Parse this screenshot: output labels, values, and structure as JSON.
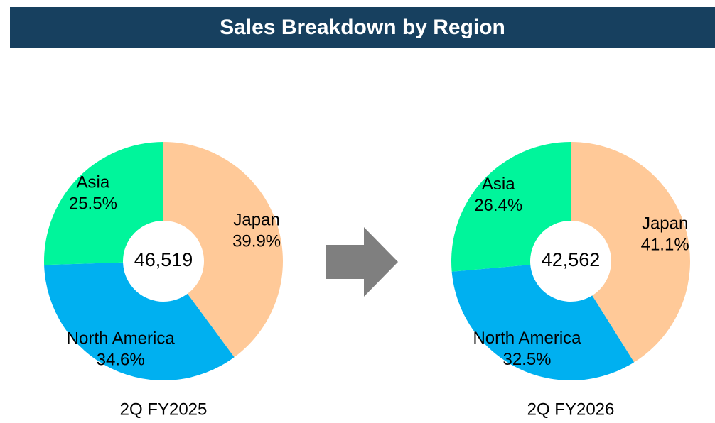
{
  "title": "Sales Breakdown by Region",
  "chart_data": [
    {
      "type": "donut",
      "caption": "2Q FY2025",
      "center_label": "46,519",
      "categories": [
        "Japan",
        "North America",
        "Asia"
      ],
      "values": [
        39.9,
        34.6,
        25.5
      ],
      "value_labels": [
        "39.9%",
        "34.6%",
        "25.5%"
      ],
      "colors": [
        "#ffc998",
        "#00b0f0",
        "#00f59b"
      ]
    },
    {
      "type": "donut",
      "caption": "2Q FY2026",
      "center_label": "42,562",
      "categories": [
        "Japan",
        "North America",
        "Asia"
      ],
      "values": [
        41.1,
        32.5,
        26.4
      ],
      "value_labels": [
        "41.1%",
        "32.5%",
        "26.4%"
      ],
      "colors": [
        "#ffc998",
        "#00b0f0",
        "#00f59b"
      ]
    }
  ]
}
